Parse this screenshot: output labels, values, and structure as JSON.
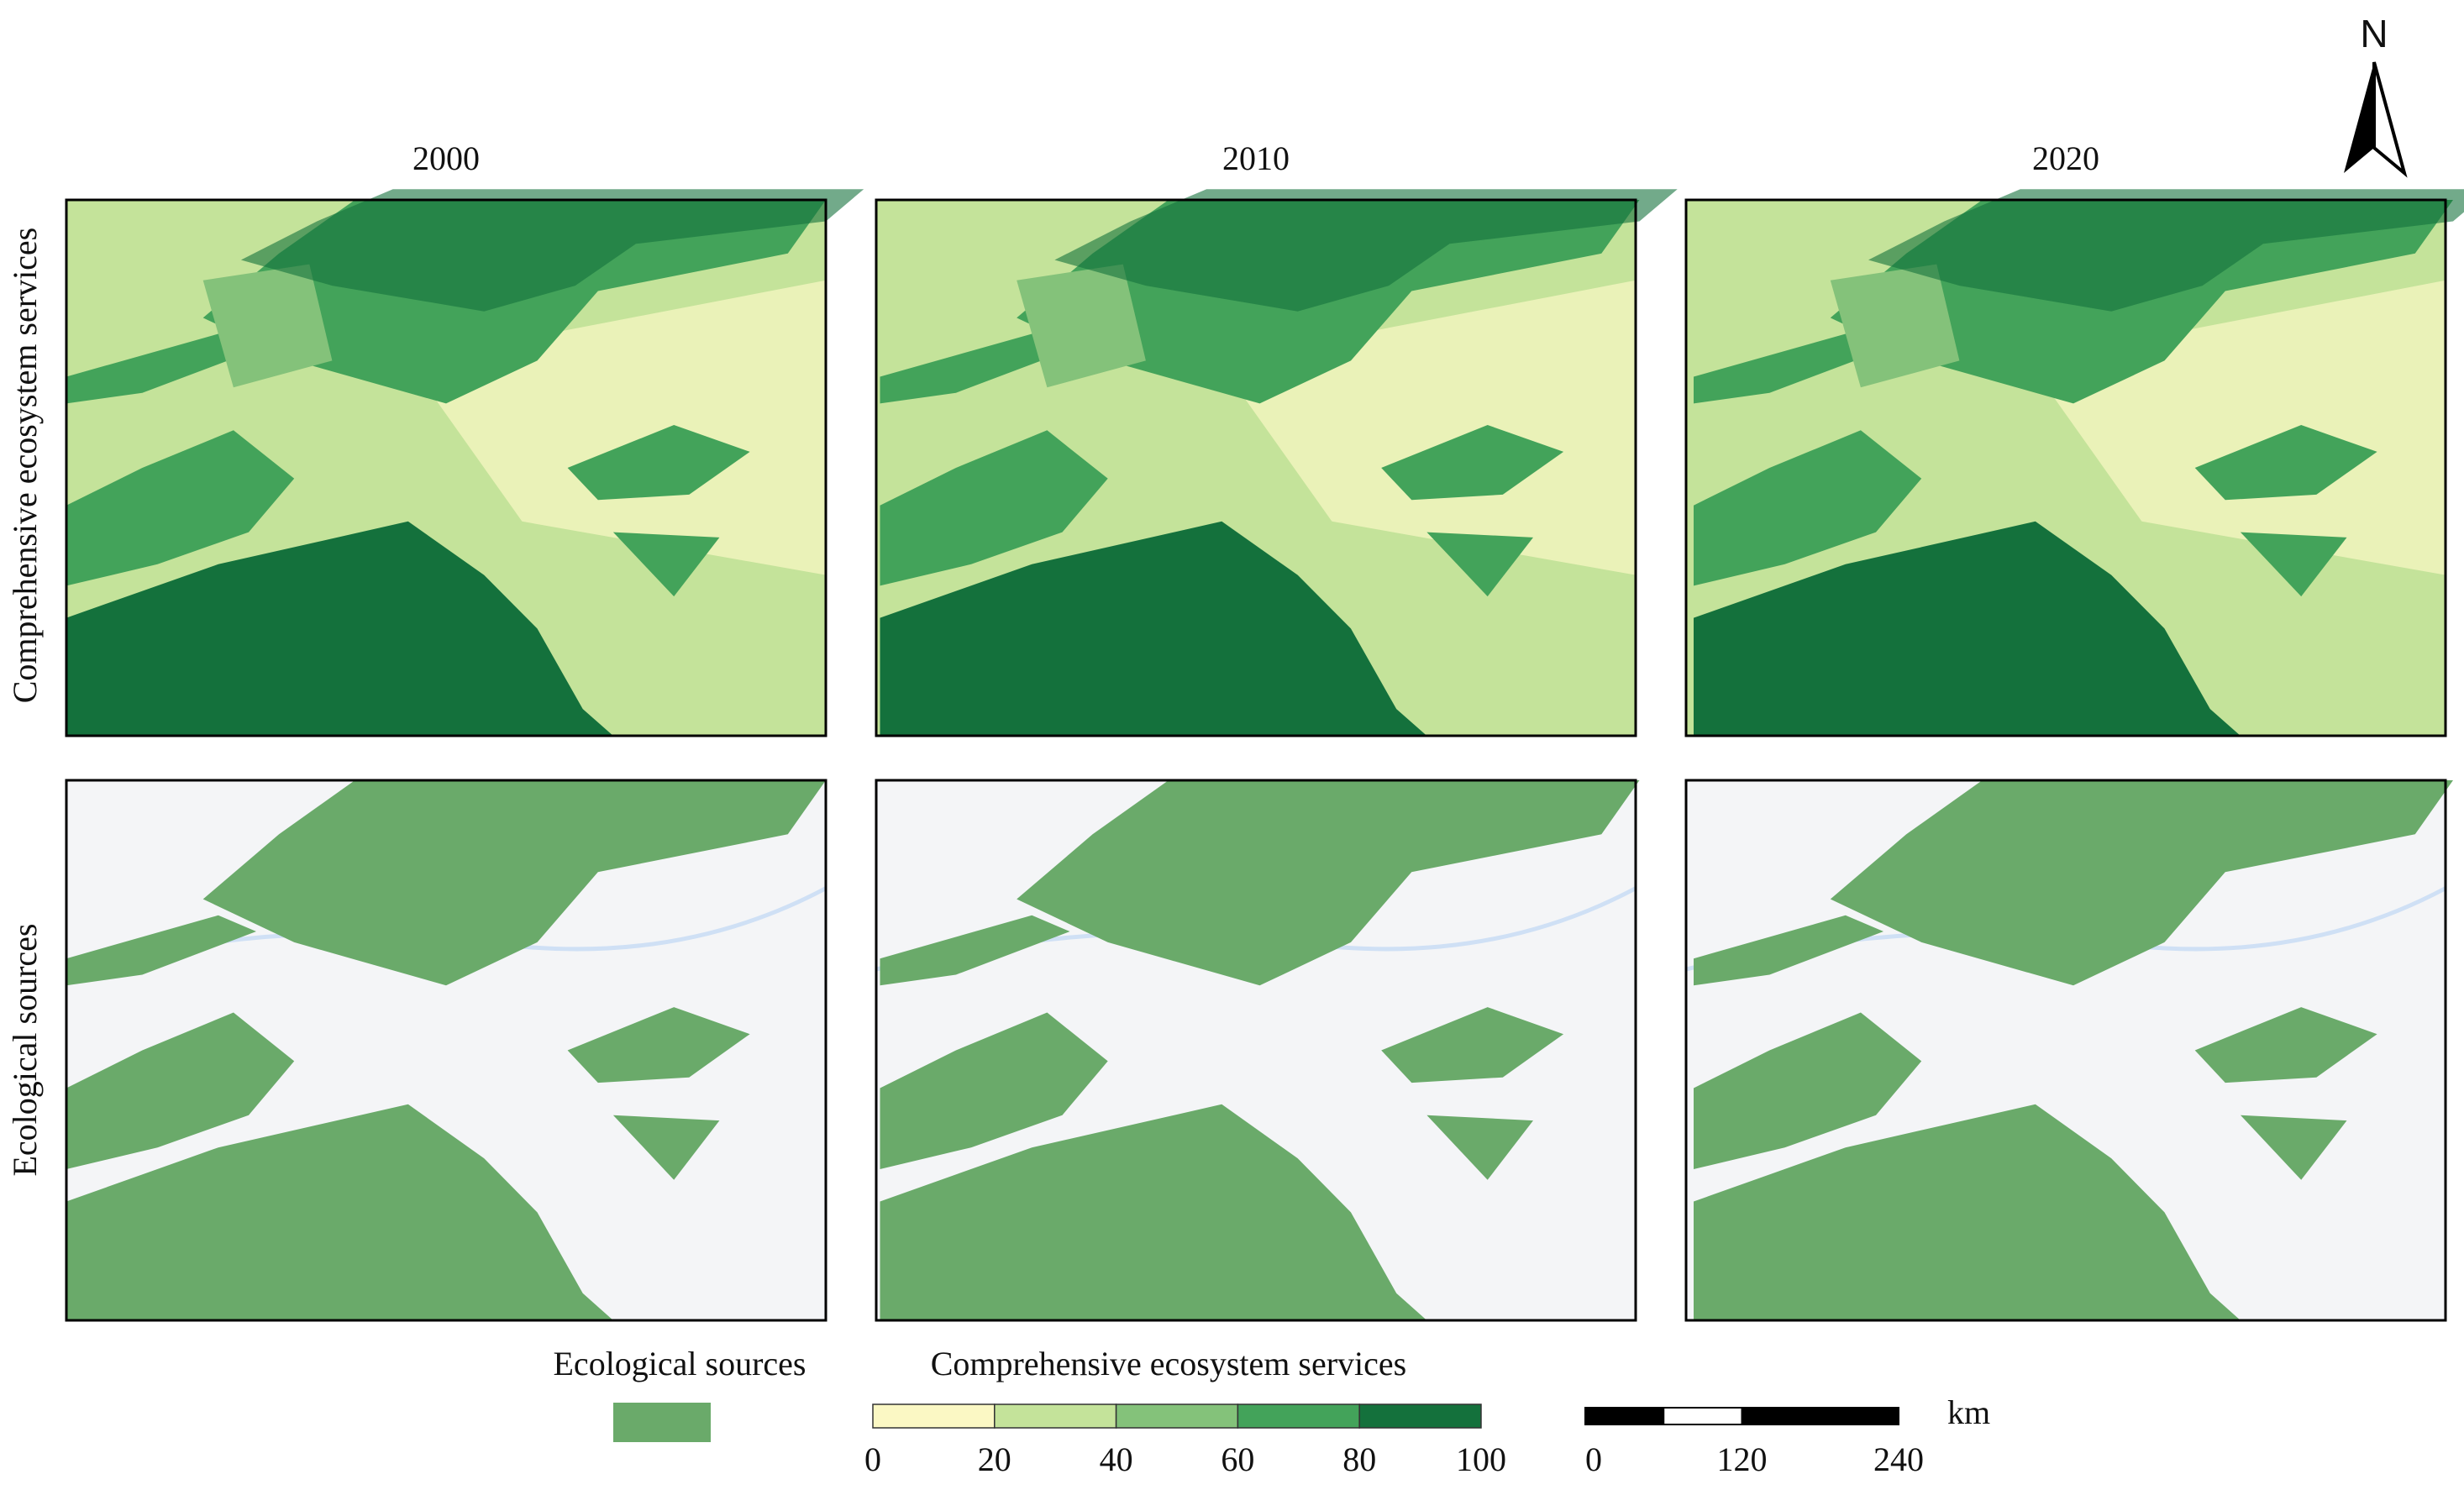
{
  "north": "N",
  "columns": [
    "2000",
    "2010",
    "2020"
  ],
  "rows": [
    "Comprehensive ecosystem services",
    "Ecological sources"
  ],
  "legend": {
    "sources": {
      "title": "Ecological sources",
      "color": "#6aaa6a"
    },
    "services": {
      "title": "Comprehensive ecosystem services",
      "ticks": [
        0,
        20,
        40,
        60,
        80,
        100
      ],
      "colors": [
        "#fbf8c4",
        "#c4e39a",
        "#84c27a",
        "#43a35a",
        "#14713c"
      ]
    }
  },
  "scale_bar": {
    "ticks": [
      0,
      120,
      240
    ],
    "unit": "km"
  }
}
